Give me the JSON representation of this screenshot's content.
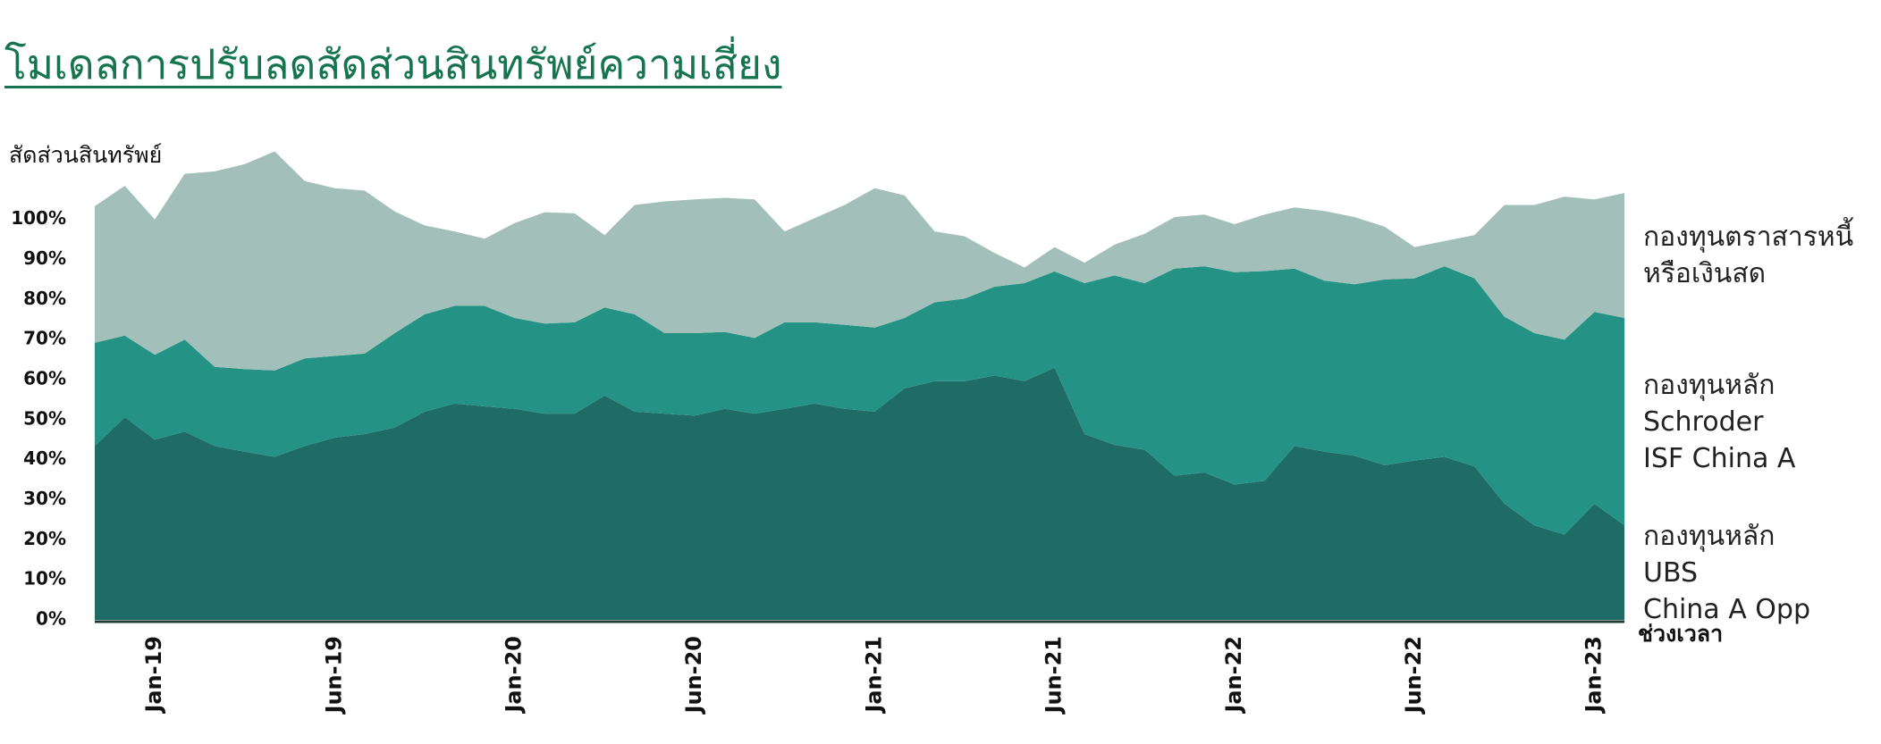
{
  "chart_data": {
    "type": "stacked-area",
    "title": "โมเดลการปรับลดสัดส่วนสินทรัพย์ความเสี่ยง",
    "y_label": "สัดส่วนสินทรัพย์",
    "x_label": "ช่วงเวลา",
    "categories": [
      null,
      null,
      "Jan-19",
      null,
      null,
      null,
      null,
      null,
      "Jun-19",
      null,
      null,
      null,
      null,
      null,
      "Jan-20",
      null,
      null,
      null,
      null,
      null,
      "Jun-20",
      null,
      null,
      null,
      null,
      null,
      "Jan-21",
      null,
      null,
      null,
      null,
      null,
      "Jun-21",
      null,
      null,
      null,
      null,
      null,
      "Jan-22",
      null,
      null,
      null,
      null,
      null,
      "Jun-22",
      null,
      null,
      null,
      null,
      null,
      "Jan-23",
      null
    ],
    "ylim": [
      0,
      120
    ],
    "yticks": [
      {
        "value": 0,
        "label": "0%"
      },
      {
        "value": 10,
        "label": "10%"
      },
      {
        "value": 20,
        "label": "20%"
      },
      {
        "value": 30,
        "label": "30%"
      },
      {
        "value": 40,
        "label": "40%"
      },
      {
        "value": 50,
        "label": "50%"
      },
      {
        "value": 60,
        "label": "60%"
      },
      {
        "value": 70,
        "label": "70%"
      },
      {
        "value": 80,
        "label": "80%"
      },
      {
        "value": 90,
        "label": "90%"
      },
      {
        "value": 100,
        "label": "100%"
      }
    ],
    "series": [
      {
        "name": "กองทุนหลัก\nUBS\nChina A Opp",
        "color": "#1f6b66",
        "values": [
          43.4,
          50.6,
          45,
          47,
          43.4,
          42,
          40.7,
          43.4,
          45.5,
          46.4,
          48,
          52,
          54,
          53.3,
          52.7,
          51.5,
          51.5,
          56,
          52,
          51.5,
          51,
          52.7,
          51.5,
          52.7,
          54,
          52.7,
          52,
          57.8,
          59.6,
          59.6,
          61,
          59.6,
          63,
          46.4,
          43.7,
          42.5,
          36,
          36.8,
          33.8,
          34.7,
          43.4,
          42,
          41,
          38.6,
          39.8,
          40.7,
          38.3,
          29,
          23.6,
          21.3,
          29,
          23.6
        ]
      },
      {
        "name": "กองทุนหลัก\nSchroder\nISF  China A",
        "color": "#249385",
        "values": [
          25.8,
          20.4,
          21.2,
          23,
          19.8,
          20.6,
          21.6,
          21.9,
          20.4,
          20.1,
          23.6,
          24.3,
          24.4,
          25.1,
          22.7,
          22.5,
          22.8,
          22,
          24.3,
          20.1,
          20.6,
          19.2,
          18.9,
          21.6,
          20.3,
          21,
          21,
          17.6,
          19.7,
          20.6,
          22.2,
          24.5,
          24,
          37.7,
          42.3,
          41.6,
          51.7,
          51.5,
          53,
          52.4,
          44.3,
          42.7,
          42.8,
          46.4,
          45.5,
          47.6,
          47,
          46.7,
          48,
          48.7,
          47.9,
          51.8
        ]
      },
      {
        "name": "กองทุนตราสารหนี้\nหรือเงินสด",
        "color": "#a2c0b9",
        "values": [
          34.1,
          37.4,
          33.8,
          41.4,
          48.8,
          51.2,
          54.7,
          44.3,
          41.9,
          40.7,
          30.4,
          22.2,
          18.6,
          16.8,
          23.7,
          27.8,
          27.2,
          18.1,
          27.3,
          32.9,
          33.4,
          33.5,
          34.6,
          22.7,
          26,
          29.9,
          34.8,
          30.6,
          17.7,
          15.6,
          8.4,
          3.9,
          6.1,
          5.1,
          7.7,
          12.3,
          12.9,
          12.9,
          12,
          14.1,
          15.3,
          17.4,
          16.8,
          13.2,
          7.8,
          6.3,
          10.8,
          27.9,
          32,
          35.7,
          28.1,
          31.2
        ]
      }
    ]
  }
}
